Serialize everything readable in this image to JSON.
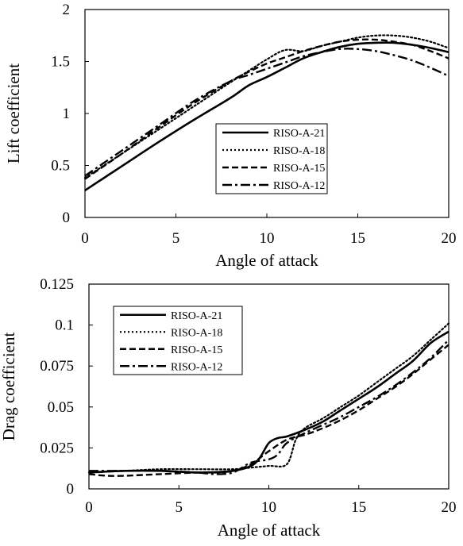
{
  "chart_data": [
    {
      "type": "line",
      "xlabel": "Angle of attack",
      "ylabel": "Lift coefficient",
      "xlim": [
        0,
        20
      ],
      "ylim": [
        0,
        2
      ],
      "xticks": [
        "0",
        "5",
        "10",
        "15",
        "20"
      ],
      "yticks": [
        "0",
        "0.5",
        "1",
        "1.5",
        "2"
      ],
      "grid": false,
      "legend_position": "center-right",
      "series": [
        {
          "name": "RISO-A-21",
          "style": "solid",
          "x": [
            0,
            2,
            4,
            6,
            8,
            9,
            10,
            11,
            12,
            13,
            14,
            15,
            16,
            17,
            18,
            19,
            20
          ],
          "y": [
            0.26,
            0.49,
            0.72,
            0.94,
            1.15,
            1.27,
            1.35,
            1.44,
            1.53,
            1.59,
            1.64,
            1.67,
            1.68,
            1.68,
            1.66,
            1.63,
            1.59
          ]
        },
        {
          "name": "RISO-A-18",
          "style": "dotted",
          "x": [
            0,
            2,
            4,
            6,
            8,
            9,
            10,
            11,
            12,
            13,
            14,
            15,
            16,
            17,
            18,
            19,
            20
          ],
          "y": [
            0.38,
            0.61,
            0.84,
            1.07,
            1.3,
            1.41,
            1.52,
            1.61,
            1.6,
            1.65,
            1.69,
            1.73,
            1.75,
            1.75,
            1.73,
            1.69,
            1.63
          ]
        },
        {
          "name": "RISO-A-15",
          "style": "dashed",
          "x": [
            0,
            2,
            4,
            6,
            8,
            9,
            10,
            11,
            12,
            13,
            14,
            15,
            16,
            17,
            18,
            19,
            20
          ],
          "y": [
            0.37,
            0.61,
            0.86,
            1.1,
            1.31,
            1.4,
            1.48,
            1.54,
            1.6,
            1.65,
            1.69,
            1.71,
            1.71,
            1.69,
            1.66,
            1.6,
            1.53
          ]
        },
        {
          "name": "RISO-A-12",
          "style": "dash-dot",
          "x": [
            0,
            2,
            4,
            6,
            8,
            9,
            10,
            11,
            12,
            13,
            14,
            15,
            16,
            17,
            18,
            19,
            20
          ],
          "y": [
            0.4,
            0.64,
            0.88,
            1.12,
            1.31,
            1.37,
            1.43,
            1.49,
            1.55,
            1.59,
            1.62,
            1.62,
            1.6,
            1.56,
            1.51,
            1.44,
            1.36
          ]
        }
      ]
    },
    {
      "type": "line",
      "xlabel": "Angle of attack",
      "ylabel": "Drag coefficient",
      "xlim": [
        0,
        20
      ],
      "ylim": [
        0,
        0.125
      ],
      "xticks": [
        "0",
        "5",
        "10",
        "15",
        "20"
      ],
      "yticks": [
        "0",
        "0.025",
        "0.05",
        "0.075",
        "0.1",
        "0.125"
      ],
      "grid": false,
      "legend_position": "top-left",
      "series": [
        {
          "name": "RISO-A-21",
          "style": "solid",
          "x": [
            0,
            2,
            4,
            6,
            8,
            9,
            9.5,
            10,
            10.5,
            11,
            12,
            13,
            14,
            15,
            16,
            17,
            18,
            19,
            20
          ],
          "y": [
            0.01,
            0.011,
            0.011,
            0.01,
            0.011,
            0.014,
            0.019,
            0.028,
            0.031,
            0.032,
            0.036,
            0.041,
            0.048,
            0.055,
            0.062,
            0.07,
            0.078,
            0.089,
            0.096
          ]
        },
        {
          "name": "RISO-A-18",
          "style": "dotted",
          "x": [
            0,
            2,
            4,
            6,
            8,
            9,
            10,
            11,
            11.5,
            12,
            13,
            14,
            15,
            16,
            17,
            18,
            19,
            20
          ],
          "y": [
            0.01,
            0.011,
            0.012,
            0.012,
            0.012,
            0.013,
            0.014,
            0.015,
            0.03,
            0.037,
            0.043,
            0.05,
            0.057,
            0.065,
            0.073,
            0.081,
            0.091,
            0.101
          ]
        },
        {
          "name": "RISO-A-15",
          "style": "dashed",
          "x": [
            0,
            1,
            2,
            4,
            6,
            7,
            8,
            9,
            10,
            11,
            12,
            13,
            14,
            15,
            16,
            17,
            18,
            19,
            20
          ],
          "y": [
            0.009,
            0.008,
            0.008,
            0.009,
            0.01,
            0.01,
            0.011,
            0.015,
            0.023,
            0.03,
            0.033,
            0.037,
            0.042,
            0.048,
            0.055,
            0.062,
            0.07,
            0.079,
            0.088
          ]
        },
        {
          "name": "RISO-A-12",
          "style": "dash-dot",
          "x": [
            0,
            2,
            4,
            6,
            7,
            8,
            9,
            10,
            10.5,
            11,
            12,
            13,
            14,
            15,
            16,
            17,
            18,
            19,
            20
          ],
          "y": [
            0.011,
            0.011,
            0.011,
            0.01,
            0.009,
            0.01,
            0.016,
            0.018,
            0.021,
            0.028,
            0.034,
            0.039,
            0.044,
            0.05,
            0.056,
            0.063,
            0.071,
            0.08,
            0.091
          ]
        }
      ]
    }
  ]
}
